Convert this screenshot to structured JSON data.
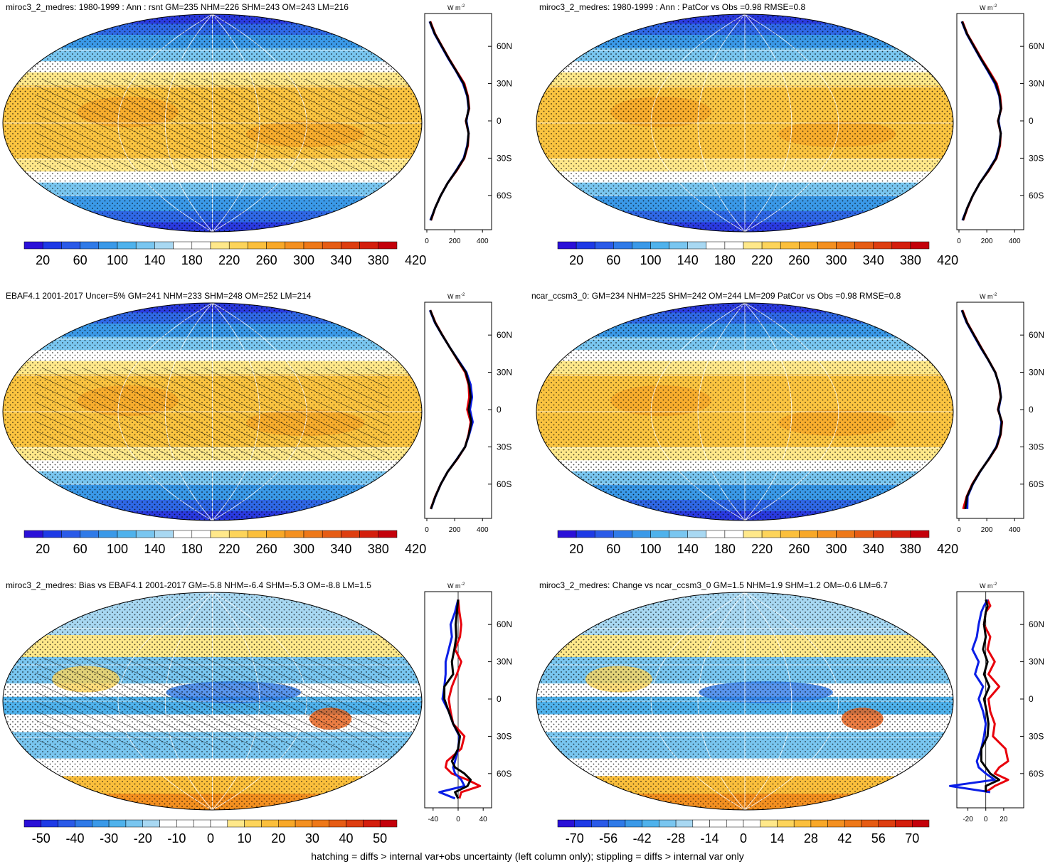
{
  "footer": "hatching = diffs > internal var+obs uncertainty (left column only); stippling = diffs > internal var only",
  "profile_units": "W m",
  "profile_units_sup": "-2",
  "lat_ticks": [
    "60N",
    "30N",
    "0",
    "30S",
    "60S"
  ],
  "colors": {
    "line_model": "#e8000b",
    "line_obs": "#0a1ee6",
    "line_other": "#000000"
  },
  "chart_data": [
    {
      "type": "heatmap",
      "title": "miroc3_2_medres: 1980-1999 : Ann : rsnt GM=235 NHM=226 SHM=243 OM=243 LM=216",
      "colorbar_labels": [
        "20",
        "60",
        "100",
        "140",
        "180",
        "220",
        "260",
        "300",
        "340",
        "380",
        "420"
      ],
      "colorbar_kind": "abs",
      "hatched": true,
      "profile_xticks": [
        "0",
        "200",
        "400"
      ],
      "profile_xlim": [
        0,
        450
      ],
      "profile": {
        "lat": [
          80,
          70,
          60,
          50,
          40,
          30,
          20,
          10,
          0,
          -10,
          -20,
          -30,
          -40,
          -50,
          -60,
          -70,
          -80
        ],
        "red": [
          25,
          60,
          110,
          160,
          215,
          270,
          295,
          305,
          280,
          300,
          295,
          270,
          215,
          150,
          100,
          60,
          30
        ],
        "blue": [
          20,
          55,
          105,
          155,
          210,
          260,
          290,
          300,
          285,
          300,
          290,
          265,
          210,
          150,
          100,
          60,
          25
        ],
        "black": [
          22,
          58,
          108,
          158,
          212,
          265,
          292,
          302,
          282,
          300,
          292,
          268,
          212,
          150,
          100,
          60,
          28
        ]
      }
    },
    {
      "type": "heatmap",
      "title": "miroc3_2_medres: 1980-1999 : Ann : PatCor vs Obs =0.98 RMSE=0.8",
      "colorbar_labels": [
        "20",
        "60",
        "100",
        "140",
        "180",
        "220",
        "260",
        "300",
        "340",
        "380",
        "420"
      ],
      "colorbar_kind": "abs",
      "hatched": false,
      "profile_xticks": [
        "0",
        "200",
        "400"
      ],
      "profile_xlim": [
        0,
        450
      ],
      "profile": {
        "lat": [
          80,
          70,
          60,
          50,
          40,
          30,
          20,
          10,
          0,
          -10,
          -20,
          -30,
          -40,
          -50,
          -60,
          -70,
          -80
        ],
        "red": [
          25,
          60,
          112,
          162,
          218,
          272,
          296,
          305,
          280,
          300,
          295,
          270,
          215,
          150,
          100,
          62,
          30
        ],
        "blue": [
          20,
          55,
          105,
          155,
          208,
          258,
          290,
          300,
          285,
          300,
          290,
          265,
          210,
          150,
          100,
          60,
          25
        ],
        "black": [
          22,
          58,
          108,
          158,
          212,
          265,
          292,
          302,
          282,
          300,
          292,
          268,
          212,
          150,
          100,
          60,
          28
        ]
      }
    },
    {
      "type": "heatmap",
      "title": "EBAF4.1 2001-2017 Uncer=5% GM=241 NHM=233 SHM=248 OM=252 LM=214",
      "colorbar_labels": [
        "20",
        "60",
        "100",
        "140",
        "180",
        "220",
        "260",
        "300",
        "340",
        "380",
        "420"
      ],
      "colorbar_kind": "abs",
      "hatched": true,
      "profile_xticks": [
        "0",
        "200",
        "400"
      ],
      "profile_xlim": [
        0,
        450
      ],
      "profile": {
        "lat": [
          80,
          70,
          60,
          50,
          40,
          30,
          20,
          10,
          0,
          -10,
          -20,
          -30,
          -40,
          -50,
          -60,
          -70,
          -80
        ],
        "red": [
          25,
          62,
          112,
          165,
          220,
          275,
          300,
          305,
          290,
          315,
          300,
          275,
          218,
          150,
          100,
          60,
          28
        ],
        "blue": [
          22,
          58,
          110,
          165,
          225,
          285,
          315,
          325,
          310,
          330,
          305,
          275,
          215,
          150,
          100,
          62,
          30
        ],
        "black": [
          24,
          60,
          111,
          165,
          222,
          280,
          305,
          315,
          300,
          320,
          302,
          275,
          216,
          150,
          100,
          61,
          29
        ]
      }
    },
    {
      "type": "heatmap",
      "title": "ncar_ccsm3_0: GM=234 NHM=225 SHM=242 OM=244 LM=209 PatCor vs Obs =0.98 RMSE=0.8",
      "colorbar_labels": [
        "20",
        "60",
        "100",
        "140",
        "180",
        "220",
        "260",
        "300",
        "340",
        "380",
        "420"
      ],
      "colorbar_kind": "abs",
      "hatched": false,
      "profile_xticks": [
        "0",
        "200",
        "400"
      ],
      "profile_xlim": [
        0,
        450
      ],
      "profile": {
        "lat": [
          80,
          70,
          60,
          50,
          40,
          30,
          20,
          10,
          0,
          -10,
          -20,
          -30,
          -40,
          -50,
          -60,
          -70,
          -80
        ],
        "red": [
          25,
          60,
          110,
          160,
          212,
          262,
          288,
          300,
          280,
          310,
          300,
          272,
          215,
          150,
          95,
          55,
          30
        ],
        "blue": [
          20,
          55,
          105,
          155,
          210,
          260,
          290,
          302,
          285,
          305,
          295,
          268,
          212,
          152,
          100,
          62,
          60
        ],
        "black": [
          22,
          58,
          108,
          158,
          211,
          261,
          289,
          301,
          282,
          308,
          298,
          270,
          213,
          151,
          98,
          58,
          45
        ]
      }
    },
    {
      "type": "heatmap",
      "title": "miroc3_2_medres: Bias vs EBAF4.1 2001-2017 GM=-5.8 NHM=-6.4 SHM=-5.3 OM=-8.8 LM=1.5",
      "colorbar_labels": [
        "-50",
        "-40",
        "-30",
        "-20",
        "-10",
        "0",
        "10",
        "20",
        "30",
        "40",
        "50"
      ],
      "colorbar_kind": "diff",
      "hatched": true,
      "profile_xticks": [
        "-40",
        "0",
        "40"
      ],
      "profile_xlim": [
        -50,
        50
      ],
      "profile": {
        "lat": [
          80,
          70,
          60,
          50,
          40,
          30,
          20,
          10,
          0,
          -10,
          -20,
          -30,
          -40,
          -50,
          -55,
          -60,
          -65,
          -70,
          -75,
          -80
        ],
        "red": [
          0,
          2,
          5,
          3,
          -5,
          5,
          -2,
          -10,
          -15,
          -12,
          -8,
          10,
          5,
          -18,
          -20,
          -10,
          15,
          35,
          5,
          2
        ],
        "blue": [
          0,
          -5,
          -12,
          -10,
          -15,
          -20,
          -20,
          -22,
          -25,
          -15,
          -8,
          2,
          0,
          -5,
          -8,
          -5,
          5,
          10,
          -30,
          -5
        ],
        "black": [
          0,
          -2,
          -4,
          -3,
          -6,
          -10,
          -8,
          -22,
          -22,
          -15,
          -8,
          3,
          0,
          -10,
          -5,
          10,
          20,
          15,
          -5,
          0
        ]
      }
    },
    {
      "type": "heatmap",
      "title": "miroc3_2_medres: Change vs ncar_ccsm3_0 GM=1.5 NHM=1.9 SHM=1.2 OM=-0.6 LM=6.7",
      "colorbar_labels": [
        "-70",
        "-56",
        "-42",
        "-28",
        "-14",
        "0",
        "14",
        "28",
        "42",
        "56",
        "70"
      ],
      "colorbar_kind": "diff",
      "hatched": false,
      "profile_xticks": [
        "-20",
        "0",
        "20"
      ],
      "profile_xlim": [
        -30,
        40
      ],
      "profile": {
        "lat": [
          80,
          75,
          70,
          60,
          50,
          40,
          30,
          20,
          10,
          0,
          -10,
          -20,
          -30,
          -40,
          -50,
          -55,
          -60,
          -65,
          -70,
          -75
        ],
        "red": [
          2,
          5,
          0,
          -2,
          5,
          2,
          10,
          3,
          15,
          3,
          5,
          10,
          8,
          22,
          25,
          15,
          10,
          25,
          10,
          0
        ],
        "blue": [
          2,
          -2,
          -5,
          -8,
          -10,
          -15,
          -8,
          -12,
          -3,
          -8,
          -3,
          0,
          -2,
          -5,
          -10,
          -8,
          0,
          10,
          -40,
          5
        ],
        "black": [
          0,
          2,
          0,
          -2,
          0,
          -3,
          2,
          -2,
          4,
          -2,
          1,
          3,
          2,
          -5,
          -5,
          0,
          5,
          15,
          0,
          0
        ]
      }
    }
  ]
}
